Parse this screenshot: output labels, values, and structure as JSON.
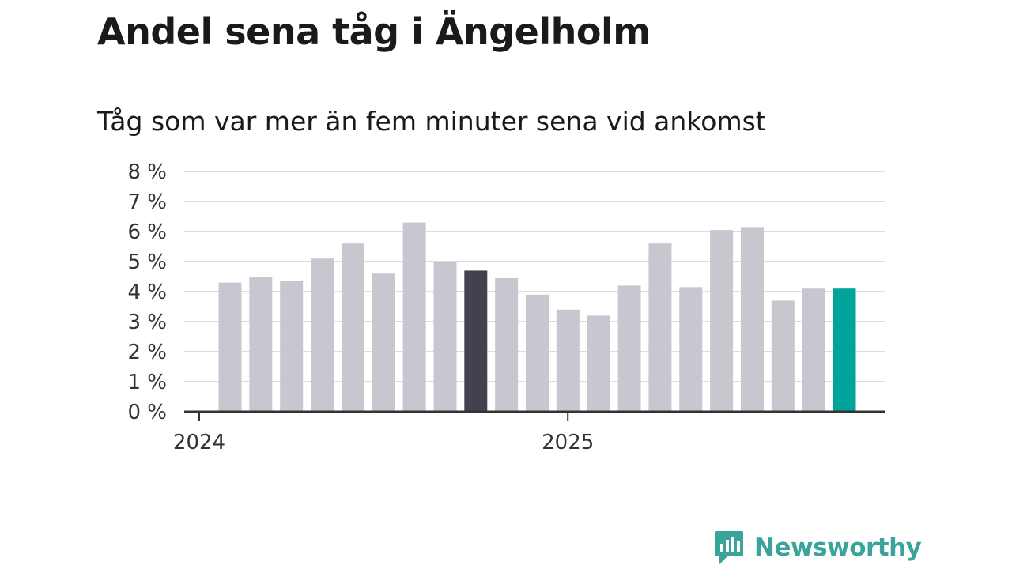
{
  "chart_data": {
    "type": "bar",
    "title": "Andel sena tåg i Ängelholm",
    "subtitle": "Tåg som var mer än fem minuter sena vid ankomst",
    "xlabel": "",
    "ylabel": "",
    "ylim": [
      0,
      8
    ],
    "y_ticks": [
      "0 %",
      "1 %",
      "2 %",
      "3 %",
      "4 %",
      "5 %",
      "6 %",
      "7 %",
      "8 %"
    ],
    "x_tick_labels": [
      {
        "label": "2024",
        "at_index": 0
      },
      {
        "label": "2025",
        "at_index": 12
      }
    ],
    "grid": true,
    "values": [
      4.3,
      4.5,
      4.35,
      5.1,
      5.6,
      4.6,
      6.3,
      5.0,
      4.7,
      4.45,
      3.9,
      3.4,
      3.2,
      4.2,
      5.6,
      4.15,
      6.05,
      6.15,
      3.7,
      4.1,
      4.1
    ],
    "highlights": {
      "8": "#42414e",
      "20": "#00a49a"
    },
    "colors": {
      "bar": "#c8c7cf",
      "grid": "#dddddd",
      "axis": "#333333"
    }
  },
  "brand": {
    "name": "Newsworthy",
    "color": "#3aa49a",
    "icon": "bar-chart-badge-icon"
  }
}
